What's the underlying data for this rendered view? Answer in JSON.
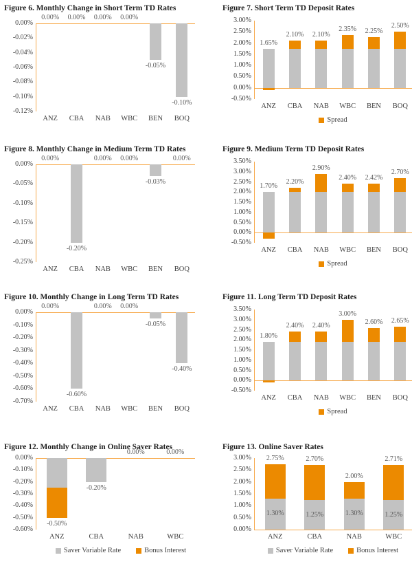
{
  "colors": {
    "gray": "#c2c2c2",
    "orange": "#ec8a00",
    "axis": "#f7a94a"
  },
  "chart_data": [
    {
      "id": "figure-6",
      "type": "bar",
      "title": "Figure 6. Monthly Change in Short Term TD Rates",
      "ylim": [
        -0.12,
        0
      ],
      "ystep": 0.02,
      "grid": false,
      "legend_position": "none",
      "categories": [
        "ANZ",
        "CBA",
        "NAB",
        "WBC",
        "BEN",
        "BOQ"
      ],
      "series": [
        {
          "color": "gray",
          "values": [
            0,
            0,
            0,
            0,
            -0.05,
            -0.1
          ]
        }
      ],
      "bar_labels": [
        [
          {
            "text": "0.00%",
            "v": 0,
            "pos": "above"
          }
        ],
        [
          {
            "text": "0.00%",
            "v": 0,
            "pos": "above"
          }
        ],
        [
          {
            "text": "0.00%",
            "v": 0,
            "pos": "above"
          }
        ],
        [
          {
            "text": "0.00%",
            "v": 0,
            "pos": "above"
          }
        ],
        [
          {
            "text": "-0.05%",
            "v": -0.05,
            "pos": "below"
          }
        ],
        [
          {
            "text": "-0.10%",
            "v": -0.1,
            "pos": "below"
          }
        ]
      ],
      "legend": []
    },
    {
      "id": "figure-7",
      "type": "bar",
      "title": "Figure 7. Short Term TD Deposit Rates",
      "ylim": [
        -0.5,
        3.0
      ],
      "ystep": 0.5,
      "grid": false,
      "legend_position": "bottom",
      "categories": [
        "ANZ",
        "CBA",
        "NAB",
        "WBC",
        "BEN",
        "BOQ"
      ],
      "series": [
        {
          "color": "gray",
          "values": [
            1.75,
            1.75,
            1.75,
            1.75,
            1.75,
            1.75
          ]
        },
        {
          "name": "Spread",
          "color": "orange",
          "values": [
            -0.1,
            0.35,
            0.35,
            0.6,
            0.5,
            0.75
          ]
        }
      ],
      "bar_labels": [
        [
          {
            "text": "1.65%",
            "v": 1.75,
            "pos": "above"
          }
        ],
        [
          {
            "text": "2.10%",
            "v": 2.1,
            "pos": "above"
          }
        ],
        [
          {
            "text": "2.10%",
            "v": 2.1,
            "pos": "above"
          }
        ],
        [
          {
            "text": "2.35%",
            "v": 2.35,
            "pos": "above"
          }
        ],
        [
          {
            "text": "2.25%",
            "v": 2.25,
            "pos": "above"
          }
        ],
        [
          {
            "text": "2.50%",
            "v": 2.5,
            "pos": "above"
          }
        ]
      ],
      "legend": [
        {
          "label": "Spread",
          "color": "orange"
        }
      ]
    },
    {
      "id": "figure-8",
      "type": "bar",
      "title": "Figure 8.  Monthly Change in Medium Term TD Rates",
      "ylim": [
        -0.25,
        0
      ],
      "ystep": 0.05,
      "grid": false,
      "legend_position": "none",
      "categories": [
        "ANZ",
        "CBA",
        "NAB",
        "WBC",
        "BEN",
        "BOQ"
      ],
      "series": [
        {
          "color": "gray",
          "values": [
            0,
            -0.2,
            0,
            0,
            -0.03,
            0
          ]
        }
      ],
      "bar_labels": [
        [
          {
            "text": "0.00%",
            "v": 0,
            "pos": "above"
          }
        ],
        [
          {
            "text": "-0.20%",
            "v": -0.2,
            "pos": "below"
          }
        ],
        [
          {
            "text": "0.00%",
            "v": 0,
            "pos": "above"
          }
        ],
        [
          {
            "text": "0.00%",
            "v": 0,
            "pos": "above"
          }
        ],
        [
          {
            "text": "-0.03%",
            "v": -0.03,
            "pos": "below"
          }
        ],
        [
          {
            "text": "0.00%",
            "v": 0,
            "pos": "above"
          }
        ]
      ],
      "legend": []
    },
    {
      "id": "figure-9",
      "type": "bar",
      "title": "Figure 9. Medium Term TD Deposit Rates",
      "ylim": [
        -0.5,
        3.5
      ],
      "ystep": 0.5,
      "grid": false,
      "legend_position": "bottom",
      "categories": [
        "ANZ",
        "CBA",
        "NAB",
        "WBC",
        "BEN",
        "BOQ"
      ],
      "series": [
        {
          "color": "gray",
          "values": [
            2.0,
            2.0,
            2.0,
            2.0,
            2.0,
            2.0
          ]
        },
        {
          "name": "Spread",
          "color": "orange",
          "values": [
            -0.3,
            0.2,
            0.9,
            0.4,
            0.42,
            0.7
          ]
        }
      ],
      "bar_labels": [
        [
          {
            "text": "1.70%",
            "v": 2.0,
            "pos": "above"
          }
        ],
        [
          {
            "text": "2.20%",
            "v": 2.2,
            "pos": "above"
          }
        ],
        [
          {
            "text": "2.90%",
            "v": 2.9,
            "pos": "above"
          }
        ],
        [
          {
            "text": "2.40%",
            "v": 2.4,
            "pos": "above"
          }
        ],
        [
          {
            "text": "2.42%",
            "v": 2.42,
            "pos": "above"
          }
        ],
        [
          {
            "text": "2.70%",
            "v": 2.7,
            "pos": "above"
          }
        ]
      ],
      "legend": [
        {
          "label": "Spread",
          "color": "orange"
        }
      ]
    },
    {
      "id": "figure-10",
      "type": "bar",
      "title": "Figure 10. Monthly Change in Long Term TD Rates",
      "ylim": [
        -0.7,
        0
      ],
      "ystep": 0.1,
      "grid": false,
      "legend_position": "none",
      "categories": [
        "ANZ",
        "CBA",
        "NAB",
        "WBC",
        "BEN",
        "BOQ"
      ],
      "series": [
        {
          "color": "gray",
          "values": [
            0,
            -0.6,
            0,
            0,
            -0.05,
            -0.4
          ]
        }
      ],
      "bar_labels": [
        [
          {
            "text": "0.00%",
            "v": 0,
            "pos": "above"
          }
        ],
        [
          {
            "text": "-0.60%",
            "v": -0.6,
            "pos": "below"
          }
        ],
        [
          {
            "text": "0.00%",
            "v": 0,
            "pos": "above"
          }
        ],
        [
          {
            "text": "0.00%",
            "v": 0,
            "pos": "above"
          }
        ],
        [
          {
            "text": "-0.05%",
            "v": -0.05,
            "pos": "below"
          }
        ],
        [
          {
            "text": "-0.40%",
            "v": -0.4,
            "pos": "below"
          }
        ]
      ],
      "legend": []
    },
    {
      "id": "figure-11",
      "type": "bar",
      "title": "Figure 11. Long Term TD Deposit Rates",
      "ylim": [
        -0.5,
        3.5
      ],
      "ystep": 0.5,
      "grid": false,
      "legend_position": "bottom",
      "categories": [
        "ANZ",
        "CBA",
        "NAB",
        "WBC",
        "BEN",
        "BOQ"
      ],
      "series": [
        {
          "color": "gray",
          "values": [
            1.9,
            1.9,
            1.9,
            1.9,
            1.9,
            1.9
          ]
        },
        {
          "name": "Spread",
          "color": "orange",
          "values": [
            -0.1,
            0.5,
            0.5,
            1.1,
            0.7,
            0.75
          ]
        }
      ],
      "bar_labels": [
        [
          {
            "text": "1.80%",
            "v": 1.9,
            "pos": "above"
          }
        ],
        [
          {
            "text": "2.40%",
            "v": 2.4,
            "pos": "above"
          }
        ],
        [
          {
            "text": "2.40%",
            "v": 2.4,
            "pos": "above"
          }
        ],
        [
          {
            "text": "3.00%",
            "v": 3.0,
            "pos": "above"
          }
        ],
        [
          {
            "text": "2.60%",
            "v": 2.6,
            "pos": "above"
          }
        ],
        [
          {
            "text": "2.65%",
            "v": 2.65,
            "pos": "above"
          }
        ]
      ],
      "legend": [
        {
          "label": "Spread",
          "color": "orange"
        }
      ]
    },
    {
      "id": "figure-12",
      "type": "bar",
      "title": "Figure 12. Monthly Change in Online Saver Rates",
      "ylim": [
        -0.6,
        0
      ],
      "ystep": 0.1,
      "grid": false,
      "legend_position": "bottom",
      "categories": [
        "ANZ",
        "CBA",
        "NAB",
        "WBC"
      ],
      "series": [
        {
          "name": "Saver Variable Rate",
          "color": "gray",
          "values": [
            -0.25,
            -0.2,
            0,
            0
          ]
        },
        {
          "name": "Bonus Interest",
          "color": "orange",
          "values": [
            -0.25,
            0,
            0,
            0
          ]
        }
      ],
      "bar_labels": [
        [
          {
            "text": "-0.50%",
            "v": -0.5,
            "pos": "below"
          }
        ],
        [
          {
            "text": "-0.20%",
            "v": -0.2,
            "pos": "below"
          }
        ],
        [
          {
            "text": "0.00%",
            "v": 0,
            "pos": "above"
          }
        ],
        [
          {
            "text": "0.00%",
            "v": 0,
            "pos": "above"
          }
        ]
      ],
      "legend": [
        {
          "label": "Saver Variable Rate",
          "color": "gray"
        },
        {
          "label": "Bonus Interest",
          "color": "orange"
        }
      ]
    },
    {
      "id": "figure-13",
      "type": "bar",
      "title": "Figure 13. Online Saver Rates",
      "ylim": [
        0,
        3.0
      ],
      "ystep": 0.5,
      "grid": false,
      "legend_position": "bottom",
      "categories": [
        "ANZ",
        "CBA",
        "NAB",
        "WBC"
      ],
      "series": [
        {
          "name": "Saver Variable Rate",
          "color": "gray",
          "values": [
            1.3,
            1.25,
            1.3,
            1.25
          ]
        },
        {
          "name": "Bonus Interest",
          "color": "orange",
          "values": [
            1.45,
            1.45,
            0.7,
            1.46
          ]
        }
      ],
      "bar_labels": [
        [
          {
            "text": "2.75%",
            "v": 2.75,
            "pos": "above"
          },
          {
            "text": "1.30%",
            "v": 0.65,
            "pos": "center"
          }
        ],
        [
          {
            "text": "2.70%",
            "v": 2.7,
            "pos": "above"
          },
          {
            "text": "1.25%",
            "v": 0.62,
            "pos": "center"
          }
        ],
        [
          {
            "text": "2.00%",
            "v": 2.0,
            "pos": "above"
          },
          {
            "text": "1.30%",
            "v": 0.65,
            "pos": "center"
          }
        ],
        [
          {
            "text": "2.71%",
            "v": 2.71,
            "pos": "above"
          },
          {
            "text": "1.25%",
            "v": 0.62,
            "pos": "center"
          }
        ]
      ],
      "legend": [
        {
          "label": "Saver Variable Rate",
          "color": "gray"
        },
        {
          "label": "Bonus Interest",
          "color": "orange"
        }
      ]
    }
  ]
}
